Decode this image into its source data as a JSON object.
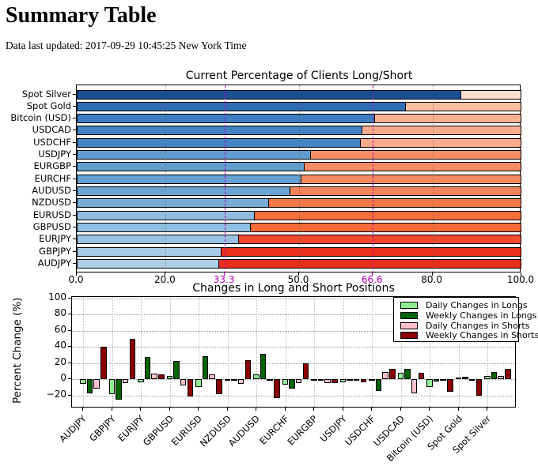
{
  "page": {
    "title": "Summary Table",
    "updated_text": "Data last updated: 2017-09-29 10:45:25 New York Time"
  },
  "chart_data": [
    {
      "type": "bar",
      "orientation": "horizontal-stacked",
      "title": "Current Percentage of Clients Long/Short",
      "xlim": [
        0,
        100
      ],
      "xticks": [
        {
          "label": "0.0",
          "value": 0,
          "color": "#000000"
        },
        {
          "label": "20.0",
          "value": 20,
          "color": "#000000"
        },
        {
          "label": "33.3",
          "value": 33.3,
          "color": "#b300b3"
        },
        {
          "label": "50.0",
          "value": 50,
          "color": "#000000"
        },
        {
          "label": "66.6",
          "value": 66.6,
          "color": "#b300b3"
        },
        {
          "label": "80.0",
          "value": 80,
          "color": "#000000"
        },
        {
          "label": "100.0",
          "value": 100,
          "color": "#000000"
        }
      ],
      "gridlines": {
        "gray_dotted": [
          20,
          50,
          80
        ],
        "magenta_dashed": [
          33.3,
          66.6
        ]
      },
      "accent_magenta": "#b300b3",
      "rows": [
        {
          "label": "Spot Silver",
          "long_pct": 86.4,
          "short_pct": 13.6,
          "long_color": "#1a4f94",
          "short_color": "#fbdfcf"
        },
        {
          "label": "Spot Gold",
          "long_pct": 74.0,
          "short_pct": 26.0,
          "long_color": "#2e6db4",
          "short_color": "#f9bda2"
        },
        {
          "label": "Bitcoin (USD)",
          "long_pct": 67.0,
          "short_pct": 33.0,
          "long_color": "#3d7ec1",
          "short_color": "#f8b093"
        },
        {
          "label": "USDCAD",
          "long_pct": 64.2,
          "short_pct": 35.8,
          "long_color": "#4283c4",
          "short_color": "#f8ac8e"
        },
        {
          "label": "USDCHF",
          "long_pct": 63.9,
          "short_pct": 36.1,
          "long_color": "#4384c4",
          "short_color": "#f8ab8d"
        },
        {
          "label": "USDJPY",
          "long_pct": 52.7,
          "short_pct": 47.3,
          "long_color": "#5f9ccf",
          "short_color": "#f78e66"
        },
        {
          "label": "EURGBP",
          "long_pct": 51.3,
          "short_pct": 48.7,
          "long_color": "#629ed0",
          "short_color": "#f78b63"
        },
        {
          "label": "EURCHF",
          "long_pct": 50.5,
          "short_pct": 49.5,
          "long_color": "#64a0d1",
          "short_color": "#f78a61"
        },
        {
          "label": "AUDUSD",
          "long_pct": 48.0,
          "short_pct": 52.0,
          "long_color": "#6aa4d3",
          "short_color": "#f78459"
        },
        {
          "label": "NZDUSD",
          "long_pct": 43.2,
          "short_pct": 56.8,
          "long_color": "#76acd7",
          "short_color": "#f67747"
        },
        {
          "label": "EURUSD",
          "long_pct": 40.0,
          "short_pct": 60.0,
          "long_color": "#8fbcdf",
          "short_color": "#f56e3d"
        },
        {
          "label": "GBPUSD",
          "long_pct": 39.2,
          "short_pct": 60.8,
          "long_color": "#92bee0",
          "short_color": "#f56c3a"
        },
        {
          "label": "EURJPY",
          "long_pct": 36.5,
          "short_pct": 63.5,
          "long_color": "#9ac2e2",
          "short_color": "#ef4a2d"
        },
        {
          "label": "GBPJPY",
          "long_pct": 32.6,
          "short_pct": 67.4,
          "long_color": "#a8cce7",
          "short_color": "#e8301c"
        },
        {
          "label": "AUDJPY",
          "long_pct": 32.0,
          "short_pct": 68.0,
          "long_color": "#abcee8",
          "short_color": "#e72e1b"
        }
      ]
    },
    {
      "type": "bar",
      "title": "Changes in Long and Short Positions",
      "ylabel": "Percent Change (%)",
      "ylim": [
        -36,
        102
      ],
      "yticks": [
        {
          "label": "−20",
          "value": -20
        },
        {
          "label": "0",
          "value": 0
        },
        {
          "label": "20",
          "value": 20
        },
        {
          "label": "40",
          "value": 40
        },
        {
          "label": "60",
          "value": 60
        },
        {
          "label": "80",
          "value": 80
        },
        {
          "label": "100",
          "value": 100
        }
      ],
      "grid": true,
      "legend_position": "upper right",
      "categories": [
        "AUDJPY",
        "GBPJPY",
        "EURJPY",
        "GBPUSD",
        "EURUSD",
        "NZDUSD",
        "AUDUSD",
        "EURCHF",
        "EURGBP",
        "USDJPY",
        "USDCHF",
        "USDCAD",
        "Bitcoin (USD)",
        "Spot Gold",
        "Spot Silver"
      ],
      "series": [
        {
          "name": "Daily Changes in Longs",
          "color": "#90ee90",
          "values": [
            -6,
            -18,
            -4,
            4,
            -10,
            -2,
            6,
            -7,
            -1,
            -4,
            -1,
            8,
            -10,
            2,
            4
          ]
        },
        {
          "name": "Weekly Changes in Longs",
          "color": "#006400",
          "values": [
            -17,
            -25,
            28,
            23,
            29,
            -1,
            32,
            -12,
            -1,
            -2,
            -14,
            13,
            -3,
            3,
            9
          ]
        },
        {
          "name": "Daily Changes in Shorts",
          "color": "#ffc0cb",
          "values": [
            -12,
            -5,
            7,
            -8,
            6,
            -6,
            -1,
            -5,
            -5,
            -1,
            9,
            -17,
            -1,
            -1,
            4
          ]
        },
        {
          "name": "Weekly Changes in Shorts",
          "color": "#8b0000",
          "values": [
            40,
            50,
            6,
            -21,
            -18,
            24,
            -23,
            20,
            -5,
            -4,
            13,
            8,
            -15,
            -20,
            13
          ]
        }
      ]
    }
  ]
}
